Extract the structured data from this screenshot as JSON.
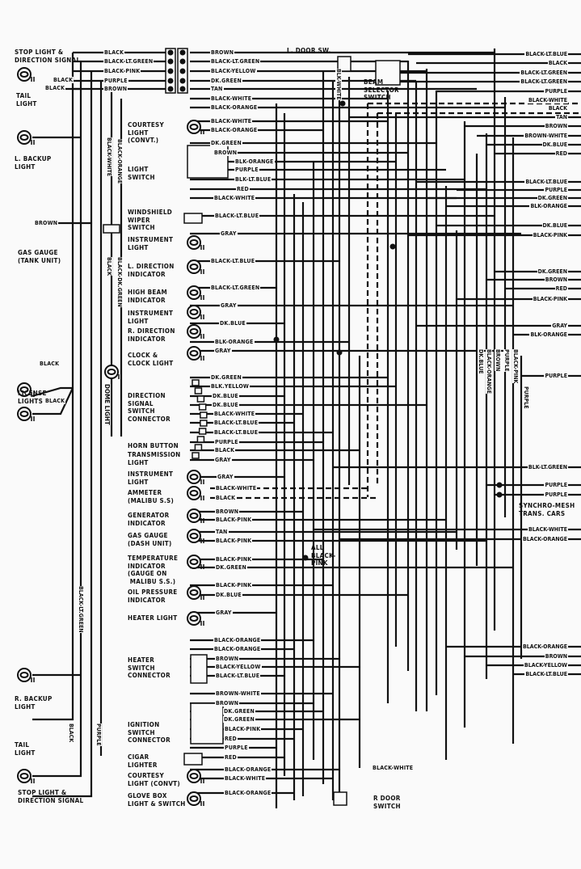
{
  "components": {
    "stop_light_top": "STOP LIGHT &\nDIRECTION SIGNAL",
    "tail_light_top": "TAIL\nLIGHT",
    "l_backup_light": "L. BACKUP\nLIGHT",
    "gas_gauge_tank": "GAS GAUGE\n(TANK UNIT)",
    "license_lights": "LICENSE\nLIGHTS",
    "r_backup_light": "R. BACKUP\nLIGHT",
    "tail_light_bottom": "TAIL\nLIGHT",
    "stop_light_bottom": "STOP LIGHT &\nDIRECTION SIGNAL",
    "dome_light": "DOME\nLIGHT",
    "courtesy_light_top": "COURTESY\nLIGHT\n(CONVT.)",
    "light_switch": "LIGHT\nSWITCH",
    "windshield_wiper_switch": "WINDSHIELD\nWIPER\nSWITCH",
    "instrument_light_1": "INSTRUMENT\nLIGHT",
    "l_direction_indicator": "L. DIRECTION\nINDICATOR",
    "high_beam_indicator": "HIGH BEAM\nINDICATOR",
    "instrument_light_2": "INSTRUMENT\nLIGHT",
    "r_direction_indicator": "R. DIRECTION\nINDICATOR",
    "clock_light": "CLOCK &\nCLOCK LIGHT",
    "direction_signal_connector": "DIRECTION\nSIGNAL\nSWITCH\nCONNECTOR",
    "horn_button": "HORN BUTTON",
    "transmission_light": "TRANSMISSION\nLIGHT",
    "instrument_light_3": "INSTRUMENT\nLIGHT",
    "ammeter": "AMMETER\n(MALIBU S.S)",
    "generator_indicator": "GENERATOR\nINDICATOR",
    "gas_gauge_dash": "GAS GAUGE\n(DASH UNIT)",
    "temperature_indicator": "TEMPERATURE\nINDICATOR\n(GAUGE ON\n MALIBU S.S.)",
    "oil_pressure_indicator": "OIL PRESSURE\nINDICATOR",
    "heater_light": "HEATER LIGHT",
    "heater_switch_connector": "HEATER\nSWITCH\nCONNECTOR",
    "ignition_switch_connector": "IGNITION\nSWITCH\nCONNECTOR",
    "cigar_lighter": "CIGAR\nLIGHTER",
    "courtesy_light_bottom": "COURTESY\nLIGHT (CONVT)",
    "glove_box_light": "GLOVE BOX\nLIGHT & SWITCH",
    "l_door_sw": "L. DOOR SW.",
    "beam_selector_switch": "BEAM\nSELECTOR\nSWITCH",
    "r_door_switch": "R DOOR\nSWITCH",
    "synchro_mesh": "SYNCHRO-MESH\nTRANS. CARS",
    "all_black_pink": "ALL\nBLACK-\nPINK"
  },
  "left_wire_labels": [
    "BLACK",
    "BLACK-LT.GREEN",
    "BLACK-PINK",
    "PURPLE",
    "BROWN",
    "BLACK",
    "BLACK",
    "BROWN",
    "BLACK",
    "BLACK"
  ],
  "center_wire_labels": [
    "BROWN",
    "BLACK-LT.GREEN",
    "BLACK-YELLOW",
    "DK.GREEN",
    "TAN",
    "BLACK-WHITE",
    "BLACK-ORANGE",
    "BLACK-WHITE",
    "BLACK-ORANGE",
    "DK.GREEN",
    "BROWN",
    "BLK-ORANGE",
    "PURPLE",
    "BLK-LT.BLUE",
    "RED",
    "BLACK-WHITE",
    "BLACK-LT.BLUE",
    "GRAY",
    "BLACK-LT.BLUE",
    "BLACK-LT.GREEN",
    "GRAY",
    "DK.BLUE",
    "BLK-ORANGE",
    "GRAY",
    "DK.GREEN",
    "BLK.YELLOW",
    "DK.BLUE",
    "DK.BLUE",
    "BLACK-WHITE",
    "BLACK-LT.BLUE",
    "BLACK-LT.BLUE",
    "PURPLE",
    "BLACK",
    "GRAY",
    "GRAY",
    "BLACK-WHITE",
    "BLACK",
    "BROWN",
    "BLACK-PINK",
    "TAN",
    "BLACK-PINK",
    "BLACK-PINK",
    "DK.GREEN",
    "BLACK-PINK",
    "DK.BLUE",
    "GRAY",
    "BLACK-ORANGE",
    "BLACK-ORANGE",
    "BROWN",
    "BLACK-YELLOW",
    "BLACK-LT.BLUE",
    "BROWN-WHITE",
    "BROWN",
    "DK.GREEN",
    "DK.GREEN",
    "BLACK-PINK",
    "RED",
    "PURPLE",
    "RED",
    "BLACK-ORANGE",
    "BLACK-WHITE",
    "BLACK-ORANGE",
    "BLACK-WHITE"
  ],
  "right_wire_labels": [
    "BLACK-LT.BLUE",
    "BLACK",
    "BLACK-LT.GREEN",
    "BLACK-LT.GREEN",
    "PURPLE",
    "BLACK-WHITE",
    "BLACK",
    "TAN",
    "BROWN",
    "BROWN-WHITE",
    "DK.BLUE",
    "RED",
    "BLACK-LT.BLUE",
    "PURPLE",
    "DK.GREEN",
    "BLK-ORANGE",
    "DK.BLUE",
    "BLACK-PINK",
    "DK.GREEN",
    "BROWN",
    "RED",
    "BLACK-PINK",
    "GRAY",
    "BLK-ORANGE",
    "PURPLE",
    "BLK-LT.GREEN",
    "PURPLE",
    "PURPLE",
    "BLACK-WHITE",
    "BLACK-ORANGE",
    "BLACK-ORANGE",
    "BROWN",
    "BLACK-YELLOW",
    "BLACK-LT.BLUE"
  ],
  "vertical_wire_labels": [
    "BLACK-WHITE",
    "BLACK-ORANGE",
    "BLACK",
    "BLACK-DK.GREEN",
    "BLK-WHITE",
    "DK.BLUE",
    "BLACK-ORANGE",
    "BROWN",
    "PURPLE",
    "BLACK-PINK",
    "PURPLE",
    "BLACK-LT.GREEN",
    "BLACK",
    "PURPLE"
  ],
  "colors": {
    "ink": "#111111",
    "paper": "#fafafa"
  }
}
